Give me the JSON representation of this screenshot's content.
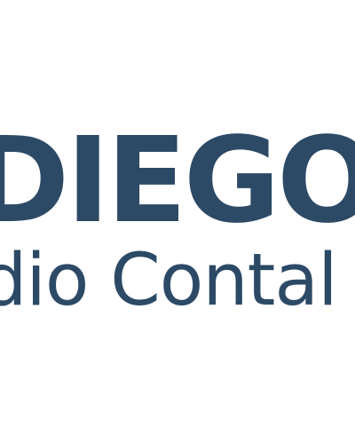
{
  "logo": {
    "line1": "DIEGO",
    "line2": "dio Contal",
    "color": "#2c4a66",
    "background": "#ffffff"
  }
}
